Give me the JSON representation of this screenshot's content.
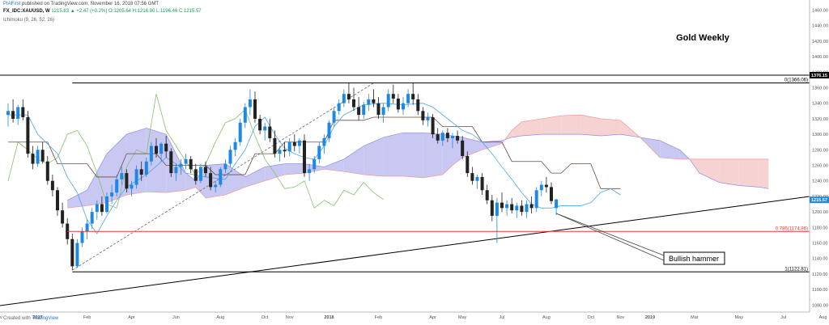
{
  "header": {
    "author": "PIAFirst",
    "published_text": "published on TradingView.com, November 16, 2018 07:56 GMT",
    "symbol": "FX_IDC:XAUUSD, W",
    "ohlc": "1215.83 ▲ +2.47 (+0.2%) O:1205.64 H:1216.80 L:1196.46 C:1215.57",
    "indicator": "Ichimoku (9, 26, 52, 26)"
  },
  "footer": {
    "created_with": "Created with",
    "brand": "TradingView"
  },
  "chart_data": {
    "type": "candlestick",
    "title": "Gold Weekly",
    "y_ticks": [
      "1460.00",
      "1440.00",
      "1420.00",
      "1400.00",
      "1380.00",
      "1360.00",
      "1340.00",
      "1320.00",
      "1300.00",
      "1280.00",
      "1260.00",
      "1240.00",
      "1220.00",
      "1200.00",
      "1180.00",
      "1160.00",
      "1140.00",
      "1120.00",
      "1100.00",
      "1080.00"
    ],
    "y_tick_values": [
      1460,
      1440,
      1420,
      1400,
      1380,
      1360,
      1340,
      1320,
      1300,
      1280,
      1260,
      1240,
      1220,
      1200,
      1180,
      1160,
      1140,
      1120,
      1100,
      1080
    ],
    "ylim": [
      1071,
      1473
    ],
    "x_ticks": [
      "Nov",
      "2017",
      "Feb",
      "Apr",
      "Jun",
      "Aug",
      "Oct",
      "Nov",
      "2018",
      "Feb",
      "Apr",
      "May",
      "Jul",
      "Aug",
      "Oct",
      "Nov",
      "2019",
      "Mar",
      "May",
      "Jul",
      "Aug"
    ],
    "x_tick_weeks": [
      -2,
      6,
      16,
      25,
      34,
      43,
      52,
      57,
      65,
      75,
      86,
      92,
      100,
      109,
      118,
      124,
      130,
      139,
      148,
      157,
      165
    ],
    "levels": [
      {
        "label": "0(1366.06)",
        "value": 1366.06,
        "color": "#000000"
      },
      {
        "label": "0.786(1174.86)",
        "value": 1174.86,
        "color": "#e53935"
      },
      {
        "label": "1(1122.81)",
        "value": 1122.81,
        "color": "#000000"
      }
    ],
    "resistance_label": "1376.15",
    "resistance_value": 1376.15,
    "last_price_label": "1215.57",
    "last_price": 1215.57,
    "annotation": "Bullish hammer",
    "candles": [
      [
        1325,
        1340,
        1310,
        1330
      ],
      [
        1330,
        1345,
        1315,
        1320
      ],
      [
        1320,
        1338,
        1312,
        1335
      ],
      [
        1335,
        1345,
        1318,
        1322
      ],
      [
        1322,
        1330,
        1270,
        1275
      ],
      [
        1275,
        1285,
        1255,
        1262
      ],
      [
        1262,
        1285,
        1258,
        1280
      ],
      [
        1280,
        1290,
        1262,
        1265
      ],
      [
        1265,
        1272,
        1235,
        1240
      ],
      [
        1240,
        1248,
        1220,
        1228
      ],
      [
        1228,
        1232,
        1195,
        1202
      ],
      [
        1202,
        1212,
        1180,
        1185
      ],
      [
        1185,
        1192,
        1158,
        1165
      ],
      [
        1165,
        1172,
        1125,
        1130
      ],
      [
        1130,
        1165,
        1128,
        1160
      ],
      [
        1160,
        1180,
        1155,
        1175
      ],
      [
        1175,
        1190,
        1165,
        1185
      ],
      [
        1185,
        1205,
        1178,
        1200
      ],
      [
        1200,
        1215,
        1190,
        1210
      ],
      [
        1210,
        1220,
        1195,
        1200
      ],
      [
        1200,
        1225,
        1198,
        1220
      ],
      [
        1220,
        1235,
        1210,
        1225
      ],
      [
        1225,
        1248,
        1220,
        1242
      ],
      [
        1242,
        1258,
        1235,
        1250
      ],
      [
        1250,
        1255,
        1225,
        1230
      ],
      [
        1230,
        1240,
        1220,
        1235
      ],
      [
        1235,
        1260,
        1230,
        1255
      ],
      [
        1255,
        1265,
        1240,
        1248
      ],
      [
        1248,
        1270,
        1245,
        1265
      ],
      [
        1265,
        1290,
        1260,
        1285
      ],
      [
        1285,
        1295,
        1270,
        1275
      ],
      [
        1275,
        1290,
        1265,
        1288
      ],
      [
        1288,
        1298,
        1270,
        1278
      ],
      [
        1278,
        1282,
        1245,
        1250
      ],
      [
        1250,
        1262,
        1240,
        1258
      ],
      [
        1258,
        1268,
        1248,
        1262
      ],
      [
        1262,
        1275,
        1255,
        1268
      ],
      [
        1268,
        1272,
        1250,
        1255
      ],
      [
        1255,
        1262,
        1235,
        1240
      ],
      [
        1240,
        1262,
        1237,
        1258
      ],
      [
        1258,
        1265,
        1245,
        1250
      ],
      [
        1250,
        1258,
        1228,
        1232
      ],
      [
        1232,
        1240,
        1225,
        1235
      ],
      [
        1235,
        1258,
        1232,
        1255
      ],
      [
        1255,
        1268,
        1250,
        1262
      ],
      [
        1262,
        1285,
        1258,
        1280
      ],
      [
        1280,
        1295,
        1272,
        1290
      ],
      [
        1290,
        1320,
        1285,
        1315
      ],
      [
        1315,
        1340,
        1308,
        1335
      ],
      [
        1335,
        1358,
        1325,
        1345
      ],
      [
        1345,
        1355,
        1315,
        1320
      ],
      [
        1320,
        1325,
        1300,
        1305
      ],
      [
        1305,
        1315,
        1292,
        1310
      ],
      [
        1310,
        1320,
        1290,
        1295
      ],
      [
        1295,
        1305,
        1270,
        1275
      ],
      [
        1275,
        1285,
        1265,
        1280
      ],
      [
        1280,
        1290,
        1270,
        1278
      ],
      [
        1278,
        1295,
        1272,
        1290
      ],
      [
        1290,
        1300,
        1278,
        1285
      ],
      [
        1285,
        1295,
        1275,
        1292
      ],
      [
        1292,
        1300,
        1245,
        1250
      ],
      [
        1250,
        1262,
        1240,
        1255
      ],
      [
        1255,
        1272,
        1250,
        1268
      ],
      [
        1268,
        1290,
        1262,
        1285
      ],
      [
        1285,
        1300,
        1275,
        1295
      ],
      [
        1295,
        1318,
        1290,
        1315
      ],
      [
        1315,
        1335,
        1310,
        1330
      ],
      [
        1330,
        1345,
        1325,
        1340
      ],
      [
        1340,
        1358,
        1335,
        1352
      ],
      [
        1352,
        1366,
        1340,
        1345
      ],
      [
        1345,
        1360,
        1330,
        1335
      ],
      [
        1335,
        1348,
        1318,
        1325
      ],
      [
        1325,
        1342,
        1320,
        1338
      ],
      [
        1338,
        1352,
        1330,
        1345
      ],
      [
        1345,
        1358,
        1335,
        1340
      ],
      [
        1340,
        1348,
        1320,
        1325
      ],
      [
        1325,
        1340,
        1315,
        1335
      ],
      [
        1335,
        1358,
        1330,
        1352
      ],
      [
        1352,
        1364,
        1340,
        1346
      ],
      [
        1346,
        1352,
        1328,
        1332
      ],
      [
        1332,
        1348,
        1325,
        1340
      ],
      [
        1340,
        1358,
        1335,
        1352
      ],
      [
        1352,
        1366,
        1338,
        1345
      ],
      [
        1345,
        1352,
        1325,
        1330
      ],
      [
        1330,
        1335,
        1312,
        1318
      ],
      [
        1318,
        1328,
        1310,
        1322
      ],
      [
        1322,
        1326,
        1295,
        1300
      ],
      [
        1300,
        1308,
        1288,
        1292
      ],
      [
        1292,
        1305,
        1285,
        1302
      ],
      [
        1302,
        1308,
        1290,
        1295
      ],
      [
        1295,
        1302,
        1282,
        1298
      ],
      [
        1298,
        1305,
        1288,
        1292
      ],
      [
        1292,
        1298,
        1268,
        1272
      ],
      [
        1272,
        1278,
        1245,
        1250
      ],
      [
        1250,
        1258,
        1235,
        1240
      ],
      [
        1240,
        1248,
        1230,
        1245
      ],
      [
        1245,
        1250,
        1222,
        1228
      ],
      [
        1228,
        1235,
        1210,
        1215
      ],
      [
        1215,
        1222,
        1188,
        1195
      ],
      [
        1195,
        1218,
        1160,
        1212
      ],
      [
        1212,
        1225,
        1200,
        1205
      ],
      [
        1205,
        1215,
        1195,
        1210
      ],
      [
        1210,
        1218,
        1198,
        1202
      ],
      [
        1202,
        1212,
        1192,
        1208
      ],
      [
        1208,
        1215,
        1195,
        1200
      ],
      [
        1200,
        1215,
        1192,
        1210
      ],
      [
        1210,
        1220,
        1198,
        1205
      ],
      [
        1205,
        1232,
        1200,
        1228
      ],
      [
        1228,
        1240,
        1220,
        1235
      ],
      [
        1235,
        1245,
        1225,
        1232
      ],
      [
        1232,
        1238,
        1210,
        1214
      ],
      [
        1205,
        1217,
        1196,
        1216
      ]
    ],
    "cloud": [
      [
        12,
        1215,
        1205
      ],
      [
        16,
        1228,
        1208
      ],
      [
        20,
        1275,
        1212
      ],
      [
        24,
        1300,
        1222
      ],
      [
        28,
        1308,
        1226
      ],
      [
        32,
        1300,
        1225
      ],
      [
        36,
        1250,
        1228
      ],
      [
        38,
        1240,
        1232
      ],
      [
        40,
        1260,
        1218
      ],
      [
        44,
        1262,
        1222
      ],
      [
        48,
        1245,
        1232
      ],
      [
        52,
        1258,
        1240
      ],
      [
        56,
        1262,
        1248
      ],
      [
        60,
        1262,
        1250
      ],
      [
        64,
        1258,
        1255
      ],
      [
        68,
        1268,
        1252
      ],
      [
        72,
        1285,
        1248
      ],
      [
        76,
        1296,
        1246
      ],
      [
        80,
        1302,
        1246
      ],
      [
        84,
        1302,
        1244
      ],
      [
        88,
        1300,
        1248
      ],
      [
        90,
        1298,
        1260
      ],
      [
        92,
        1296,
        1270
      ],
      [
        96,
        1290,
        1280
      ],
      [
        100,
        1292,
        1288
      ],
      [
        102,
        1296,
        1305
      ],
      [
        104,
        1298,
        1316
      ],
      [
        108,
        1300,
        1320
      ],
      [
        112,
        1300,
        1324
      ],
      [
        116,
        1300,
        1325
      ],
      [
        120,
        1298,
        1320
      ],
      [
        124,
        1300,
        1318
      ],
      [
        128,
        1296,
        1296
      ],
      [
        132,
        1292,
        1270
      ],
      [
        136,
        1280,
        1268
      ],
      [
        138,
        1268,
        1268
      ],
      [
        140,
        1250,
        1268
      ],
      [
        144,
        1238,
        1268
      ],
      [
        148,
        1234,
        1268
      ],
      [
        152,
        1232,
        1268
      ],
      [
        154,
        1230,
        1268
      ]
    ],
    "kijun": [
      [
        0,
        1290
      ],
      [
        8,
        1290
      ],
      [
        10,
        1262
      ],
      [
        16,
        1262
      ],
      [
        18,
        1245
      ],
      [
        22,
        1245
      ],
      [
        24,
        1275
      ],
      [
        30,
        1275
      ],
      [
        32,
        1260
      ],
      [
        40,
        1260
      ],
      [
        42,
        1248
      ],
      [
        48,
        1248
      ],
      [
        50,
        1275
      ],
      [
        54,
        1275
      ],
      [
        56,
        1290
      ],
      [
        64,
        1290
      ],
      [
        66,
        1318
      ],
      [
        72,
        1318
      ],
      [
        74,
        1322
      ],
      [
        86,
        1322
      ],
      [
        88,
        1310
      ],
      [
        94,
        1310
      ],
      [
        96,
        1290
      ],
      [
        100,
        1290
      ],
      [
        102,
        1265
      ],
      [
        108,
        1265
      ],
      [
        110,
        1250
      ],
      [
        112,
        1250
      ],
      [
        114,
        1262
      ],
      [
        118,
        1262
      ],
      [
        120,
        1230
      ],
      [
        124,
        1230
      ]
    ],
    "tenkan": [
      [
        0,
        1325
      ],
      [
        4,
        1325
      ],
      [
        6,
        1300
      ],
      [
        10,
        1275
      ],
      [
        12,
        1245
      ],
      [
        14,
        1225
      ],
      [
        16,
        1190
      ],
      [
        18,
        1172
      ],
      [
        20,
        1195
      ],
      [
        22,
        1215
      ],
      [
        24,
        1232
      ],
      [
        28,
        1248
      ],
      [
        32,
        1270
      ],
      [
        34,
        1262
      ],
      [
        36,
        1250
      ],
      [
        40,
        1245
      ],
      [
        44,
        1242
      ],
      [
        46,
        1262
      ],
      [
        48,
        1280
      ],
      [
        50,
        1310
      ],
      [
        52,
        1322
      ],
      [
        54,
        1300
      ],
      [
        56,
        1282
      ],
      [
        58,
        1275
      ],
      [
        60,
        1270
      ],
      [
        62,
        1268
      ],
      [
        64,
        1285
      ],
      [
        66,
        1310
      ],
      [
        68,
        1325
      ],
      [
        72,
        1338
      ],
      [
        76,
        1340
      ],
      [
        80,
        1338
      ],
      [
        84,
        1340
      ],
      [
        86,
        1335
      ],
      [
        88,
        1325
      ],
      [
        92,
        1305
      ],
      [
        94,
        1300
      ],
      [
        96,
        1290
      ],
      [
        98,
        1275
      ],
      [
        100,
        1258
      ],
      [
        102,
        1242
      ],
      [
        104,
        1225
      ],
      [
        106,
        1210
      ],
      [
        108,
        1205
      ],
      [
        110,
        1205
      ],
      [
        112,
        1208
      ],
      [
        116,
        1208
      ],
      [
        118,
        1212
      ],
      [
        120,
        1225
      ],
      [
        122,
        1230
      ],
      [
        124,
        1222
      ]
    ],
    "chikou": [
      [
        0,
        1240
      ],
      [
        2,
        1290
      ],
      [
        4,
        1280
      ],
      [
        6,
        1268
      ],
      [
        8,
        1262
      ],
      [
        10,
        1270
      ],
      [
        12,
        1300
      ],
      [
        14,
        1305
      ],
      [
        16,
        1285
      ],
      [
        18,
        1250
      ],
      [
        20,
        1210
      ],
      [
        22,
        1205
      ],
      [
        24,
        1258
      ],
      [
        26,
        1280
      ],
      [
        28,
        1275
      ],
      [
        30,
        1352
      ],
      [
        32,
        1305
      ],
      [
        34,
        1285
      ],
      [
        36,
        1265
      ],
      [
        38,
        1248
      ],
      [
        40,
        1262
      ],
      [
        42,
        1290
      ],
      [
        44,
        1315
      ],
      [
        46,
        1320
      ],
      [
        48,
        1332
      ],
      [
        50,
        1298
      ],
      [
        52,
        1268
      ],
      [
        54,
        1250
      ],
      [
        56,
        1230
      ],
      [
        58,
        1232
      ],
      [
        60,
        1240
      ],
      [
        62,
        1205
      ],
      [
        64,
        1215
      ],
      [
        66,
        1208
      ],
      [
        68,
        1228
      ],
      [
        70,
        1222
      ],
      [
        72,
        1238
      ],
      [
        74,
        1225
      ],
      [
        76,
        1216
      ]
    ]
  }
}
